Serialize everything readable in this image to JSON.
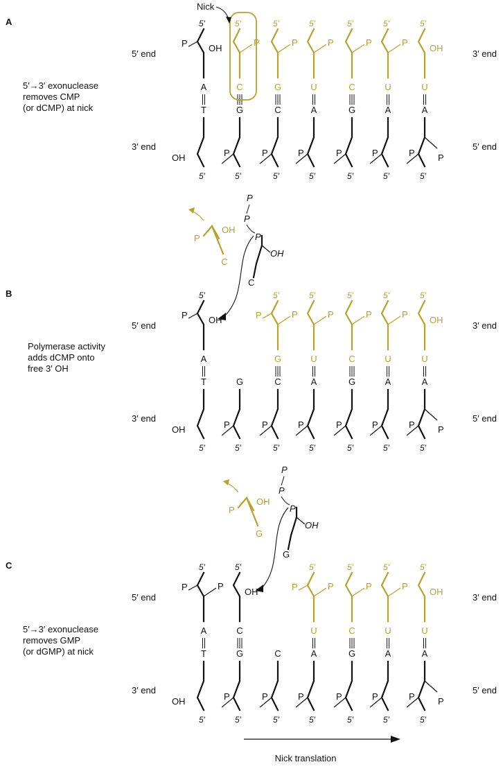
{
  "colors": {
    "black": "#111111",
    "gold": "#b8a12a"
  },
  "labels": {
    "five_end": "5′ end",
    "three_end": "3′ end",
    "five_prime": "5′",
    "P": "P",
    "OH": "OH",
    "nick": "Nick",
    "nick_translation": "Nick translation"
  },
  "panels": [
    {
      "id": "A",
      "letter": "A",
      "caption": [
        "5′→3′ exonuclease",
        "removes CMP",
        "(or dCMP) at nick"
      ],
      "top_bases": [
        "A",
        "C",
        "G",
        "U",
        "C",
        "U",
        "U"
      ],
      "top_colors": [
        "black",
        "gold",
        "gold",
        "gold",
        "gold",
        "gold",
        "gold"
      ],
      "bottom_bases": [
        "T",
        "G",
        "C",
        "A",
        "G",
        "A",
        "A"
      ],
      "bonds": [
        "||",
        "|||",
        "|||",
        "||",
        "|||",
        "||",
        "||"
      ],
      "free": null,
      "incoming": null
    },
    {
      "id": "B",
      "letter": "B",
      "caption": [
        "Polymerase activity",
        "adds dCMP onto",
        "free 3′ OH"
      ],
      "top_bases": [
        "A",
        null,
        "G",
        "U",
        "C",
        "U",
        "U"
      ],
      "top_colors": [
        "black",
        null,
        "gold",
        "gold",
        "gold",
        "gold",
        "gold"
      ],
      "bottom_bases": [
        "T",
        "G",
        "C",
        "A",
        "G",
        "A",
        "A"
      ],
      "bonds": [
        "||",
        null,
        "|||",
        "||",
        "|||",
        "||",
        "||"
      ],
      "free": {
        "base": "C"
      },
      "incoming": {
        "base": "C"
      }
    },
    {
      "id": "C",
      "letter": "C",
      "caption": [
        "5′→3′ exonuclease",
        "removes GMP",
        "(or dGMP) at nick"
      ],
      "top_bases": [
        "A",
        "C",
        null,
        "U",
        "C",
        "U",
        "U"
      ],
      "top_colors": [
        "black",
        "black",
        null,
        "gold",
        "gold",
        "gold",
        "gold"
      ],
      "bottom_bases": [
        "T",
        "G",
        "C",
        "A",
        "G",
        "A",
        "A"
      ],
      "bonds": [
        "||",
        "|||",
        null,
        "||",
        "|||",
        "||",
        "||"
      ],
      "free": {
        "base": "G"
      },
      "incoming": {
        "base": "G"
      }
    }
  ]
}
